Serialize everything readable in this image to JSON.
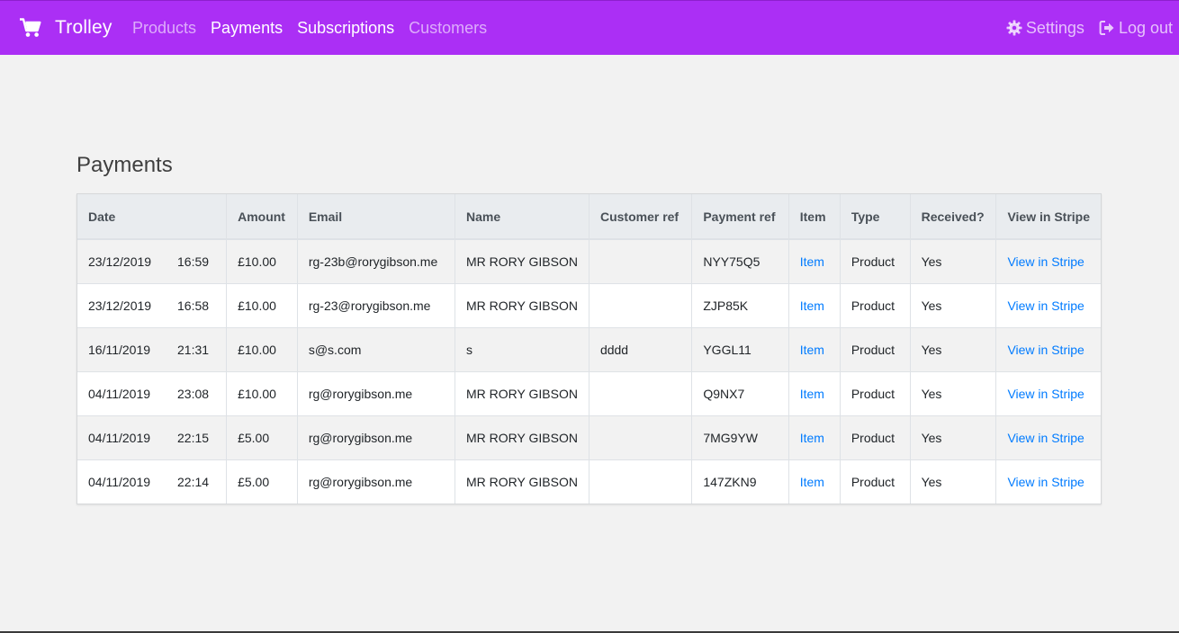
{
  "navbar": {
    "brand": "Trolley",
    "brand_icon": "shopping-cart-icon",
    "bg_color": "#ab2ff5",
    "links": [
      {
        "label": "Products",
        "active": false
      },
      {
        "label": "Payments",
        "active": true
      },
      {
        "label": "Subscriptions",
        "active": true
      },
      {
        "label": "Customers",
        "active": false
      }
    ],
    "settings_label": "Settings",
    "settings_icon": "gear-icon",
    "logout_label": "Log out",
    "logout_icon": "sign-out-icon"
  },
  "page": {
    "title": "Payments"
  },
  "table": {
    "headers": [
      "Date",
      "Amount",
      "Email",
      "Name",
      "Customer ref",
      "Payment ref",
      "Item",
      "Type",
      "Received?",
      "View in Stripe"
    ],
    "rows": [
      {
        "date": "23/12/2019",
        "time": "16:59",
        "amount": "£10.00",
        "email": "rg-23b@rorygibson.me",
        "name": "MR RORY GIBSON",
        "customer_ref": "",
        "payment_ref": "NYY75Q5",
        "item": "Item",
        "type": "Product",
        "received": "Yes",
        "stripe": "View in Stripe"
      },
      {
        "date": "23/12/2019",
        "time": "16:58",
        "amount": "£10.00",
        "email": "rg-23@rorygibson.me",
        "name": "MR RORY GIBSON",
        "customer_ref": "",
        "payment_ref": "ZJP85K",
        "item": "Item",
        "type": "Product",
        "received": "Yes",
        "stripe": "View in Stripe"
      },
      {
        "date": "16/11/2019",
        "time": "21:31",
        "amount": "£10.00",
        "email": "s@s.com",
        "name": "s",
        "customer_ref": "dddd",
        "payment_ref": "YGGL11",
        "item": "Item",
        "type": "Product",
        "received": "Yes",
        "stripe": "View in Stripe"
      },
      {
        "date": "04/11/2019",
        "time": "23:08",
        "amount": "£10.00",
        "email": "rg@rorygibson.me",
        "name": "MR RORY GIBSON",
        "customer_ref": "",
        "payment_ref": "Q9NX7",
        "item": "Item",
        "type": "Product",
        "received": "Yes",
        "stripe": "View in Stripe"
      },
      {
        "date": "04/11/2019",
        "time": "22:15",
        "amount": "£5.00",
        "email": "rg@rorygibson.me",
        "name": "MR RORY GIBSON",
        "customer_ref": "",
        "payment_ref": "7MG9YW",
        "item": "Item",
        "type": "Product",
        "received": "Yes",
        "stripe": "View in Stripe"
      },
      {
        "date": "04/11/2019",
        "time": "22:14",
        "amount": "£5.00",
        "email": "rg@rorygibson.me",
        "name": "MR RORY GIBSON",
        "customer_ref": "",
        "payment_ref": "147ZKN9",
        "item": "Item",
        "type": "Product",
        "received": "Yes",
        "stripe": "View in Stripe"
      }
    ]
  }
}
